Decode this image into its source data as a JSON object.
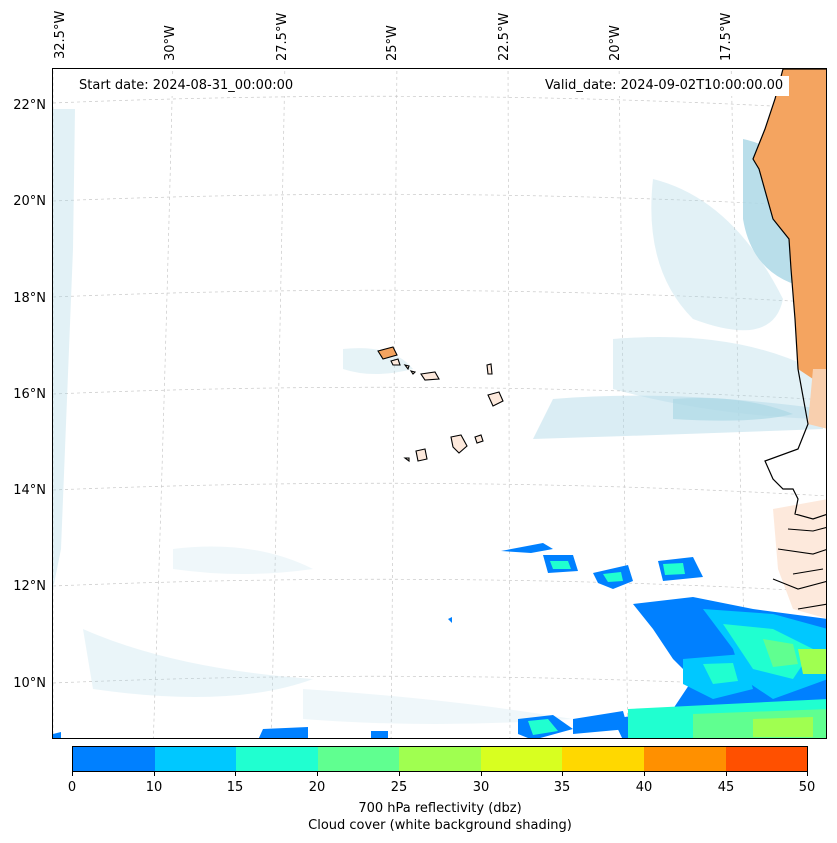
{
  "map": {
    "start_date": "Start date: 2024-08-31_00:00:00",
    "valid_date": "Valid_date: 2024-09-02T10:00:00.00",
    "lon_labels": [
      "32.5°W",
      "30°W",
      "27.5°W",
      "25°W",
      "22.5°W",
      "20°W",
      "17.5°W"
    ],
    "lat_labels": [
      "22°N",
      "20°N",
      "18°N",
      "16°N",
      "14°N",
      "12°N",
      "10°N"
    ],
    "land_color": "#f4a460",
    "cloud_color": "#add8e6",
    "coastline_color": "#000000",
    "grid": true
  },
  "colorbar": {
    "ticks": [
      "0",
      "10",
      "15",
      "20",
      "25",
      "30",
      "35",
      "40",
      "45",
      "50"
    ],
    "colors": [
      "#0080ff",
      "#00c8ff",
      "#20ffd0",
      "#60ff90",
      "#a0ff50",
      "#d8ff20",
      "#ffd800",
      "#ff9000",
      "#ff5000"
    ],
    "label_line1": "700 hPa reflectivity (dbz)",
    "label_line2": "Cloud cover (white background shading)"
  }
}
